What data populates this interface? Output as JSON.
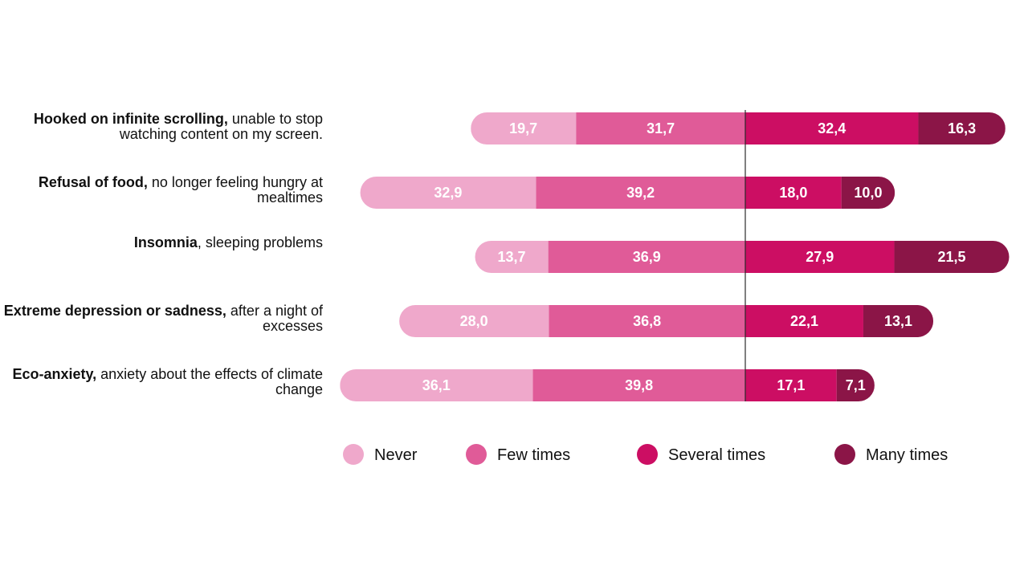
{
  "chart_data": {
    "type": "bar",
    "orientation": "horizontal",
    "stacked": true,
    "diverging": true,
    "categories": [
      {
        "bold": "Hooked on infinite scrolling,",
        "rest": " unable to stop watching content on my screen."
      },
      {
        "bold": "Refusal of food,",
        "rest": " no longer feeling hungry at mealtimes"
      },
      {
        "bold": "Insomnia",
        "rest": ", sleeping problems"
      },
      {
        "bold": "Extreme depression or sadness,",
        "rest": " after a night of excesses"
      },
      {
        "bold": "Eco-anxiety,",
        "rest": " anxiety about the effects of climate change"
      }
    ],
    "series": [
      {
        "name": "Never",
        "color": "#efa8cb",
        "side": "negative",
        "values": [
          19.7,
          32.9,
          13.7,
          28.0,
          36.1
        ],
        "labels": [
          "19,7",
          "32,9",
          "13,7",
          "28,0",
          "36,1"
        ]
      },
      {
        "name": "Few times",
        "color": "#e05b98",
        "side": "negative",
        "values": [
          31.7,
          39.2,
          36.9,
          36.8,
          39.8
        ],
        "labels": [
          "31,7",
          "39,2",
          "36,9",
          "36,8",
          "39,8"
        ]
      },
      {
        "name": "Several times",
        "color": "#cc0e63",
        "side": "positive",
        "values": [
          32.4,
          18.0,
          27.9,
          22.1,
          17.1
        ],
        "labels": [
          "32,4",
          "18,0",
          "27,9",
          "22,1",
          "17,1"
        ]
      },
      {
        "name": "Many times",
        "color": "#8b1547",
        "side": "positive",
        "values": [
          16.3,
          10.0,
          21.5,
          13.1,
          7.1
        ],
        "labels": [
          "16,3",
          "10,0",
          "21,5",
          "13,1",
          "7,1"
        ]
      }
    ],
    "legend_position": "bottom",
    "center_line": true,
    "grid": false
  }
}
